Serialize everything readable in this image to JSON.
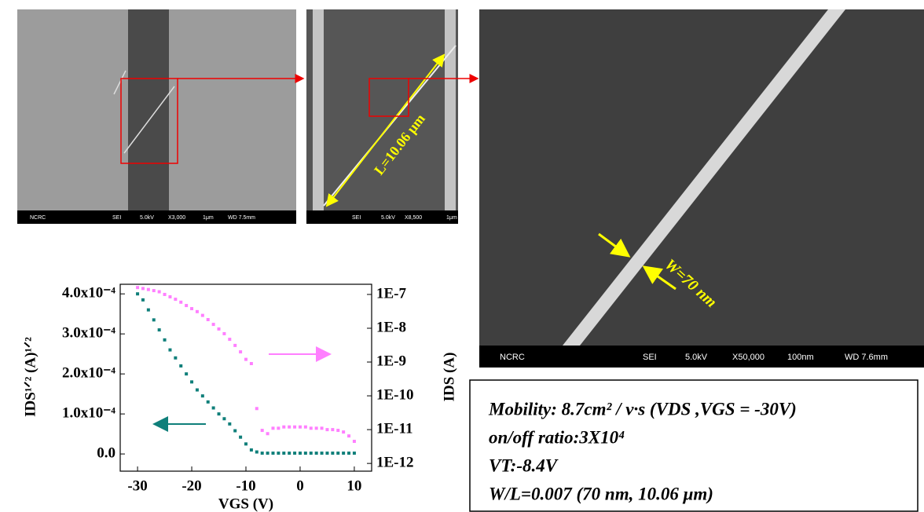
{
  "images": [
    {
      "footer": [
        "NCRC",
        "SEI",
        "5.0kV",
        "X3,000",
        "1μm",
        "WD 7.5mm"
      ]
    },
    {
      "footer": [
        "SEI",
        "5.0kV",
        "X8,500",
        "1μm"
      ],
      "label": "L=10.06 μm"
    },
    {
      "footer": [
        "NCRC",
        "SEI",
        "5.0kV",
        "X50,000",
        "100nm",
        "WD 7.6mm"
      ],
      "label": "W=70 nm"
    }
  ],
  "chart_data": {
    "type": "scatter",
    "x_label": "VGS (V)",
    "y_label": "IDS¹ᐟ² (A)¹ᐟ²",
    "y2_label": "IDS (A)",
    "x": [
      -30,
      -29,
      -28,
      -27,
      -26,
      -25,
      -24,
      -23,
      -22,
      -21,
      -20,
      -19,
      -18,
      -17,
      -16,
      -15,
      -14,
      -13,
      -12,
      -11,
      -10,
      -9,
      -8,
      -7,
      -6,
      -5,
      -4,
      -3,
      -2,
      -1,
      0,
      1,
      2,
      3,
      4,
      5,
      6,
      7,
      8,
      9,
      10
    ],
    "series": [
      {
        "color": "#0f7f7a",
        "values": [
          0.0004,
          0.000385,
          0.00036,
          0.000335,
          0.00031,
          0.000285,
          0.00026,
          0.00024,
          0.00022,
          0.0002,
          0.00018,
          0.00016,
          0.000145,
          0.00013,
          0.000115,
          0.0001,
          8.8e-05,
          7.5e-05,
          5.8e-05,
          4.2e-05,
          2.5e-05,
          1e-05,
          5e-06,
          2e-06,
          2e-06,
          2e-06,
          2e-06,
          2e-06,
          2e-06,
          2e-06,
          2e-06,
          2e-06,
          2e-06,
          2e-06,
          2e-06,
          2e-06,
          2e-06,
          2e-06,
          2e-06,
          2e-06,
          2e-06
        ]
      },
      {
        "color": "#ff7fff",
        "axis": "y2",
        "values": [
          1.6e-07,
          1.5e-07,
          1.4e-07,
          1.3e-07,
          1.2e-07,
          1e-07,
          8.5e-08,
          7.2e-08,
          5.9e-08,
          4.7e-08,
          3.8e-08,
          3.1e-08,
          2.4e-08,
          1.8e-08,
          1.3e-08,
          9.5e-09,
          6.9e-09,
          4.7e-09,
          3.1e-09,
          2e-09,
          1.2e-09,
          9e-10,
          4.2e-11,
          9.5e-12,
          7.6e-12,
          1.1e-11,
          1.1e-11,
          1.2e-11,
          1.2e-11,
          1.2e-11,
          1.2e-11,
          1.2e-11,
          1.1e-11,
          1.1e-11,
          1.1e-11,
          1e-11,
          1e-11,
          9.5e-12,
          8.5e-12,
          6.5e-12,
          4.5e-12
        ]
      }
    ],
    "xlim": [
      -33.2,
      13.2
    ],
    "xticks": [
      -30,
      -20,
      -10,
      0,
      10
    ],
    "ylim": [
      -4.3e-05,
      0.000424
    ],
    "yticks": [
      {
        "value": 0,
        "label": "0.0"
      },
      {
        "value": 0.0001,
        "label": "1.0x10⁻⁴"
      },
      {
        "value": 0.0002,
        "label": "2.0x10⁻⁴"
      },
      {
        "value": 0.0003,
        "label": "3.0x10⁻⁴"
      },
      {
        "value": 0.0004,
        "label": "4.0x10⁻⁴"
      }
    ],
    "y2lim": [
      5.9e-13,
      2e-07
    ],
    "y2_log": true,
    "y2ticks": [
      {
        "value": 1e-12,
        "label": "1E-12"
      },
      {
        "value": 1e-11,
        "label": "1E-11"
      },
      {
        "value": 1e-10,
        "label": "1E-10"
      },
      {
        "value": 1e-09,
        "label": "1E-9"
      },
      {
        "value": 1e-08,
        "label": "1E-8"
      },
      {
        "value": 1e-07,
        "label": "1E-7"
      }
    ]
  },
  "info_box": {
    "lines": [
      "Mobility: 8.7cm² / v·s (VDS ,VGS = -30V)",
      "on/off ratio:3X10⁴",
      "VT:-8.4V",
      "W/L=0.007 (70 nm, 10.06 μm)"
    ]
  }
}
